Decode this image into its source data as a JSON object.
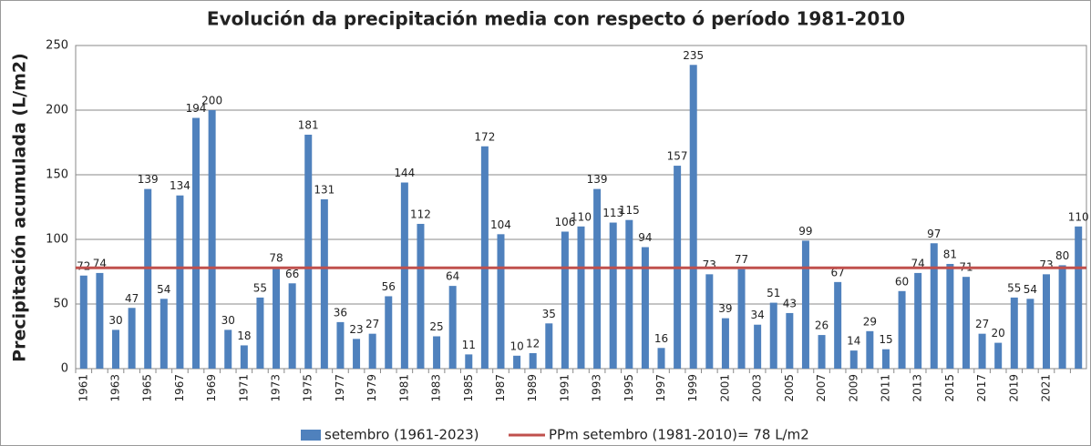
{
  "chart_data": {
    "type": "bar",
    "title": "Evolución da precipitación media con respecto ó período 1981-2010",
    "y_label": "Precipitación acumulada (L/m2)",
    "categories": [
      "1961",
      null,
      "1963",
      null,
      "1965",
      null,
      "1967",
      null,
      "1969",
      null,
      "1971",
      null,
      "1973",
      null,
      "1975",
      null,
      "1977",
      null,
      "1979",
      null,
      "1981",
      null,
      "1983",
      null,
      "1985",
      null,
      "1987",
      null,
      "1989",
      null,
      "1991",
      null,
      "1993",
      null,
      "1995",
      null,
      "1997",
      null,
      "1999",
      null,
      "2001",
      null,
      "2003",
      null,
      "2005",
      null,
      "2007",
      null,
      "2009",
      null,
      "2011",
      null,
      "2013",
      null,
      "2015",
      null,
      "2017",
      null,
      "2019",
      null,
      "2021",
      null,
      null
    ],
    "series": [
      {
        "name": "setembro (1961-2023)",
        "color": "#4f81bd",
        "values": [
          72,
          74,
          30,
          47,
          139,
          54,
          134,
          194,
          200,
          30,
          18,
          55,
          78,
          66,
          181,
          131,
          36,
          23,
          27,
          56,
          144,
          112,
          25,
          64,
          11,
          172,
          104,
          10,
          12,
          35,
          106,
          110,
          139,
          113,
          115,
          94,
          16,
          157,
          235,
          73,
          39,
          77,
          34,
          51,
          43,
          99,
          26,
          67,
          14,
          29,
          15,
          60,
          74,
          97,
          81,
          71,
          27,
          20,
          55,
          54,
          73,
          80,
          110
        ]
      }
    ],
    "reference": {
      "name": "PPm setembro (1981-2010)= 78 L/m2",
      "value": 78,
      "color": "#c0504d"
    },
    "ylim": [
      0,
      250
    ],
    "yticks": [
      0,
      50,
      100,
      150,
      200,
      250
    ],
    "grid": true
  }
}
